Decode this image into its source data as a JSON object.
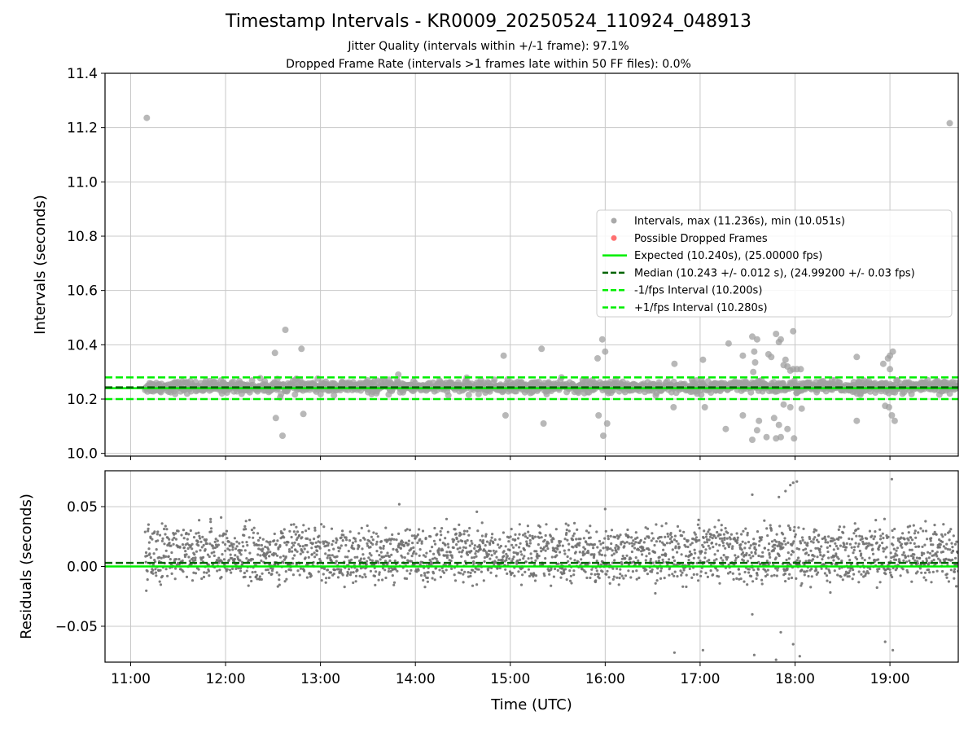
{
  "chart_data": [
    {
      "type": "scatter",
      "title": "Timestamp Intervals - KR0009_20250524_110924_048913",
      "subtitle_lines": [
        "Jitter Quality (intervals within +/-1 frame): 97.1%",
        "Dropped Frame Rate (intervals >1 frames late within 50 FF files): 0.0%"
      ],
      "xlabel": "",
      "ylabel": "Intervals (seconds)",
      "xlim_hours": [
        10.73,
        19.72
      ],
      "ylim": [
        9.99,
        11.4
      ],
      "yticks": [
        10.0,
        10.2,
        10.4,
        10.6,
        10.8,
        11.0,
        11.2,
        11.4
      ],
      "ytick_labels": [
        "10.0",
        "10.2",
        "10.4",
        "10.6",
        "10.8",
        "11.0",
        "11.2",
        "11.4"
      ],
      "grid": true,
      "legend_position": "center-right",
      "series": [
        {
          "name": "Intervals, max (11.236s), min (10.051s)",
          "kind": "points",
          "color": "#a0a0a0",
          "band": {
            "x_start": 11.15,
            "x_end": 19.72,
            "center": 10.245,
            "spread": 0.02
          },
          "outliers": [
            [
              11.17,
              11.236
            ],
            [
              19.63,
              11.216
            ],
            [
              12.52,
              10.37
            ],
            [
              12.63,
              10.455
            ],
            [
              12.8,
              10.385
            ],
            [
              12.53,
              10.13
            ],
            [
              12.6,
              10.065
            ],
            [
              12.82,
              10.145
            ],
            [
              13.82,
              10.29
            ],
            [
              14.93,
              10.36
            ],
            [
              14.95,
              10.14
            ],
            [
              15.33,
              10.385
            ],
            [
              15.35,
              10.11
            ],
            [
              15.92,
              10.35
            ],
            [
              15.93,
              10.14
            ],
            [
              15.97,
              10.42
            ],
            [
              16.0,
              10.375
            ],
            [
              16.02,
              10.11
            ],
            [
              15.98,
              10.065
            ],
            [
              16.73,
              10.33
            ],
            [
              16.72,
              10.17
            ],
            [
              17.03,
              10.345
            ],
            [
              17.05,
              10.17
            ],
            [
              17.3,
              10.405
            ],
            [
              17.27,
              10.09
            ],
            [
              17.45,
              10.36
            ],
            [
              17.45,
              10.14
            ],
            [
              17.55,
              10.43
            ],
            [
              17.6,
              10.42
            ],
            [
              17.57,
              10.375
            ],
            [
              17.58,
              10.335
            ],
            [
              17.56,
              10.3
            ],
            [
              17.55,
              10.05
            ],
            [
              17.6,
              10.085
            ],
            [
              17.62,
              10.12
            ],
            [
              17.72,
              10.365
            ],
            [
              17.75,
              10.355
            ],
            [
              17.8,
              10.44
            ],
            [
              17.83,
              10.41
            ],
            [
              17.85,
              10.42
            ],
            [
              17.7,
              10.06
            ],
            [
              17.78,
              10.13
            ],
            [
              17.8,
              10.055
            ],
            [
              17.83,
              10.105
            ],
            [
              17.85,
              10.06
            ],
            [
              17.88,
              10.325
            ],
            [
              17.9,
              10.345
            ],
            [
              17.92,
              10.32
            ],
            [
              17.95,
              10.305
            ],
            [
              17.98,
              10.31
            ],
            [
              17.88,
              10.18
            ],
            [
              17.92,
              10.09
            ],
            [
              17.95,
              10.17
            ],
            [
              17.99,
              10.055
            ],
            [
              17.98,
              10.45
            ],
            [
              18.02,
              10.31
            ],
            [
              18.06,
              10.31
            ],
            [
              18.07,
              10.165
            ],
            [
              18.65,
              10.355
            ],
            [
              18.65,
              10.12
            ],
            [
              18.93,
              10.33
            ],
            [
              18.95,
              10.175
            ],
            [
              18.98,
              10.35
            ],
            [
              19.0,
              10.36
            ],
            [
              19.03,
              10.375
            ],
            [
              19.0,
              10.31
            ],
            [
              19.02,
              10.14
            ],
            [
              19.05,
              10.12
            ],
            [
              18.99,
              10.17
            ]
          ]
        },
        {
          "name": "Possible Dropped Frames",
          "kind": "points",
          "color": "#ff6060",
          "values": []
        },
        {
          "name": "Expected (10.240s), (25.00000 fps)",
          "kind": "hline",
          "y": 10.24,
          "color": "#00ee00",
          "style": "solid"
        },
        {
          "name": "Median (10.243 +/- 0.012 s), (24.99200 +/- 0.03 fps)",
          "kind": "hline",
          "y": 10.243,
          "color": "#006400",
          "style": "dashed"
        },
        {
          "name": "-1/fps Interval (10.200s)",
          "kind": "hline",
          "y": 10.2,
          "color": "#00ee00",
          "style": "dashed"
        },
        {
          "name": "+1/fps Interval (10.280s)",
          "kind": "hline",
          "y": 10.28,
          "color": "#00ee00",
          "style": "dashed"
        }
      ]
    },
    {
      "type": "scatter",
      "xlabel": "Time (UTC)",
      "ylabel": "Residuals (seconds)",
      "xlim_hours": [
        10.73,
        19.72
      ],
      "ylim": [
        -0.08,
        0.08
      ],
      "yticks": [
        -0.05,
        0.0,
        0.05
      ],
      "ytick_labels": [
        "−0.05",
        "0.00",
        "0.05"
      ],
      "xticks": [
        11,
        12,
        13,
        14,
        15,
        16,
        17,
        18,
        19
      ],
      "xtick_labels": [
        "11:00",
        "12:00",
        "13:00",
        "14:00",
        "15:00",
        "16:00",
        "17:00",
        "18:00",
        "19:00"
      ],
      "grid": true,
      "series": [
        {
          "name": "Residuals",
          "kind": "points",
          "color": "#707070",
          "band": {
            "x_start": 11.15,
            "x_end": 19.72,
            "levels": [
              0.0,
              0.02
            ],
            "spread": 0.012
          },
          "outliers": [
            [
              13.83,
              0.052
            ],
            [
              16.0,
              0.048
            ],
            [
              17.55,
              0.06
            ],
            [
              17.83,
              0.058
            ],
            [
              17.9,
              0.063
            ],
            [
              17.95,
              0.068
            ],
            [
              17.98,
              0.07
            ],
            [
              18.02,
              0.071
            ],
            [
              19.02,
              0.073
            ],
            [
              16.73,
              -0.072
            ],
            [
              17.03,
              -0.07
            ],
            [
              17.57,
              -0.074
            ],
            [
              17.8,
              -0.078
            ],
            [
              17.98,
              -0.065
            ],
            [
              18.05,
              -0.075
            ],
            [
              18.95,
              -0.063
            ],
            [
              19.03,
              -0.07
            ],
            [
              17.55,
              -0.04
            ],
            [
              17.85,
              -0.055
            ]
          ]
        },
        {
          "name": "Expected",
          "kind": "hline",
          "y": 0.0,
          "color": "#00ee00",
          "style": "solid"
        },
        {
          "name": "Median",
          "kind": "hline",
          "y": 0.003,
          "color": "#006400",
          "style": "dashed"
        }
      ]
    }
  ]
}
